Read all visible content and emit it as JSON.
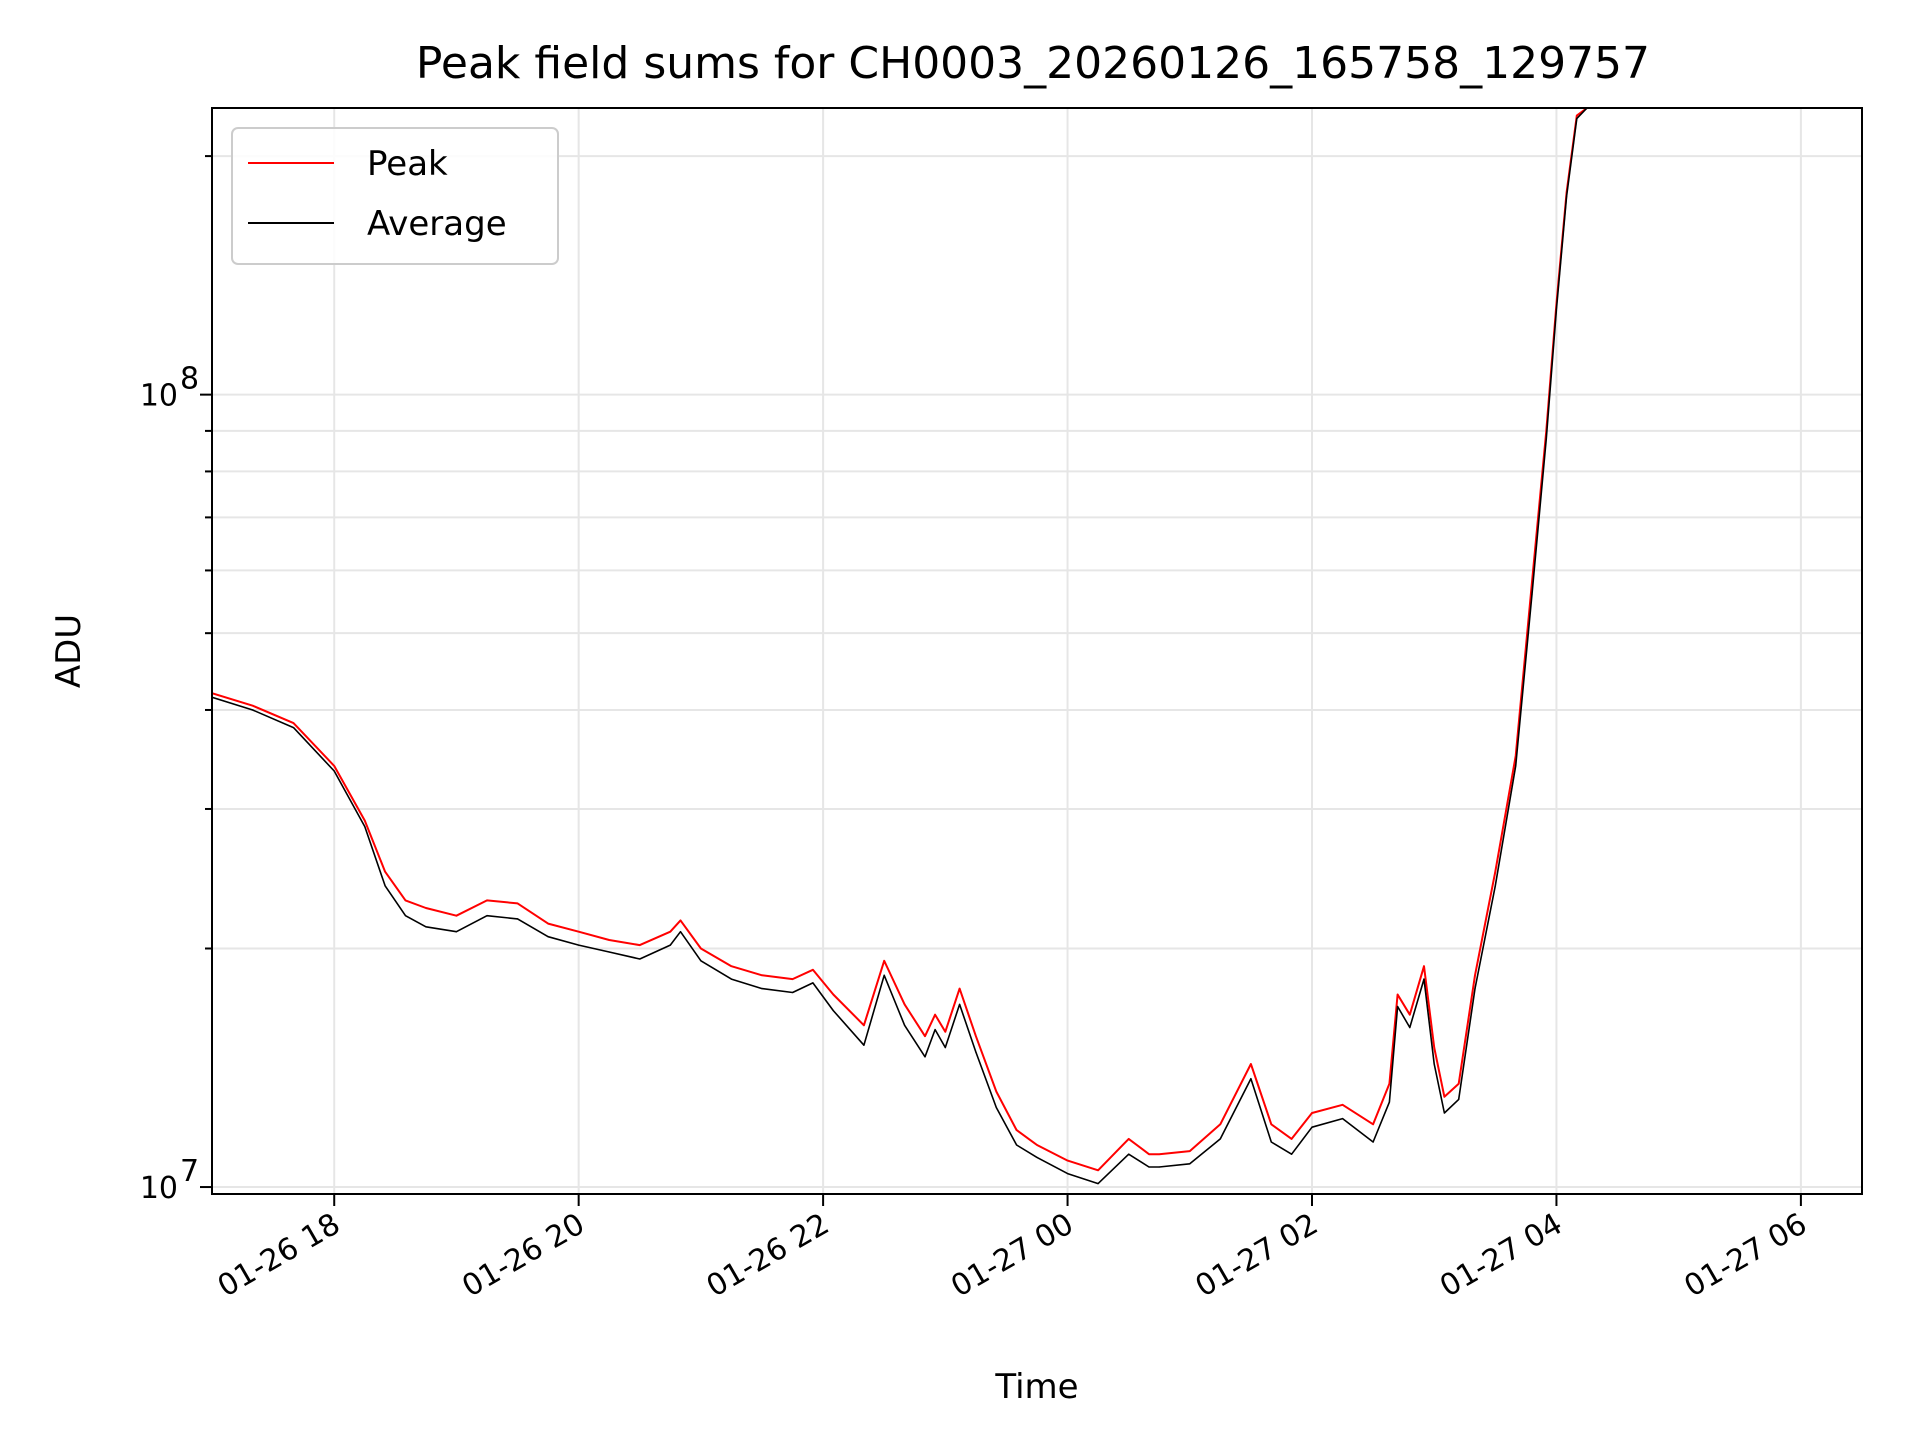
{
  "chart_data": {
    "type": "line",
    "title": "Peak field sums for CH0003_20260126_165758_129757",
    "xlabel": "Time",
    "ylabel": "ADU",
    "x_is_time": true,
    "xlim": [
      "2026-01-26 17:00",
      "2026-01-27 06:30"
    ],
    "ylim": [
      9800000,
      230000000
    ],
    "yscale": "log",
    "grid": true,
    "legend": "upper left",
    "x_ticks": [
      {
        "value": "2026-01-26 18:00",
        "label": "01-26 18"
      },
      {
        "value": "2026-01-26 20:00",
        "label": "01-26 20"
      },
      {
        "value": "2026-01-26 22:00",
        "label": "01-26 22"
      },
      {
        "value": "2026-01-27 00:00",
        "label": "01-27 00"
      },
      {
        "value": "2026-01-27 02:00",
        "label": "01-27 02"
      },
      {
        "value": "2026-01-27 04:00",
        "label": "01-27 04"
      },
      {
        "value": "2026-01-27 06:00",
        "label": "01-27 06"
      }
    ],
    "y_ticks": [
      {
        "value": 10000000,
        "base": "10",
        "exp": "7"
      },
      {
        "value": 100000000,
        "base": "10",
        "exp": "8"
      }
    ],
    "series": [
      {
        "name": "Peak",
        "color": "#ff0000",
        "x": [
          "2026-01-26 17:00",
          "2026-01-26 17:20",
          "2026-01-26 17:40",
          "2026-01-26 18:00",
          "2026-01-26 18:15",
          "2026-01-26 18:25",
          "2026-01-26 18:35",
          "2026-01-26 18:45",
          "2026-01-26 19:00",
          "2026-01-26 19:15",
          "2026-01-26 19:30",
          "2026-01-26 19:45",
          "2026-01-26 20:00",
          "2026-01-26 20:15",
          "2026-01-26 20:30",
          "2026-01-26 20:45",
          "2026-01-26 20:50",
          "2026-01-26 21:00",
          "2026-01-26 21:15",
          "2026-01-26 21:30",
          "2026-01-26 21:45",
          "2026-01-26 21:55",
          "2026-01-26 22:05",
          "2026-01-26 22:20",
          "2026-01-26 22:30",
          "2026-01-26 22:40",
          "2026-01-26 22:50",
          "2026-01-26 22:55",
          "2026-01-26 23:00",
          "2026-01-26 23:07",
          "2026-01-26 23:15",
          "2026-01-26 23:25",
          "2026-01-26 23:35",
          "2026-01-26 23:45",
          "2026-01-27 00:00",
          "2026-01-27 00:15",
          "2026-01-27 00:30",
          "2026-01-27 00:40",
          "2026-01-27 00:45",
          "2026-01-27 01:00",
          "2026-01-27 01:15",
          "2026-01-27 01:30",
          "2026-01-27 01:40",
          "2026-01-27 01:50",
          "2026-01-27 02:00",
          "2026-01-27 02:15",
          "2026-01-27 02:30",
          "2026-01-27 02:38",
          "2026-01-27 02:42",
          "2026-01-27 02:48",
          "2026-01-27 02:55",
          "2026-01-27 03:00",
          "2026-01-27 03:05",
          "2026-01-27 03:12",
          "2026-01-27 03:20",
          "2026-01-27 03:30",
          "2026-01-27 03:40",
          "2026-01-27 03:48",
          "2026-01-27 03:55",
          "2026-01-27 04:00",
          "2026-01-27 04:05",
          "2026-01-27 04:10",
          "2026-01-27 04:15"
        ],
        "values": [
          42000000,
          40500000,
          38500000,
          34000000,
          29000000,
          25000000,
          23000000,
          22500000,
          22000000,
          23000000,
          22800000,
          21500000,
          21000000,
          20500000,
          20200000,
          21000000,
          21700000,
          20000000,
          19000000,
          18500000,
          18300000,
          18800000,
          17500000,
          16000000,
          19300000,
          17000000,
          15500000,
          16500000,
          15700000,
          17800000,
          15500000,
          13200000,
          11800000,
          11300000,
          10800000,
          10500000,
          11500000,
          11000000,
          11000000,
          11100000,
          12000000,
          14300000,
          12000000,
          11500000,
          12400000,
          12700000,
          12000000,
          13500000,
          17500000,
          16500000,
          19000000,
          15000000,
          13000000,
          13500000,
          18500000,
          25000000,
          35000000,
          58000000,
          90000000,
          130000000,
          180000000,
          225000000,
          230000000
        ]
      },
      {
        "name": "Average",
        "color": "#000000",
        "x": [
          "2026-01-26 17:00",
          "2026-01-26 17:20",
          "2026-01-26 17:40",
          "2026-01-26 18:00",
          "2026-01-26 18:15",
          "2026-01-26 18:25",
          "2026-01-26 18:35",
          "2026-01-26 18:45",
          "2026-01-26 19:00",
          "2026-01-26 19:15",
          "2026-01-26 19:30",
          "2026-01-26 19:45",
          "2026-01-26 20:00",
          "2026-01-26 20:15",
          "2026-01-26 20:30",
          "2026-01-26 20:45",
          "2026-01-26 20:50",
          "2026-01-26 21:00",
          "2026-01-26 21:15",
          "2026-01-26 21:30",
          "2026-01-26 21:45",
          "2026-01-26 21:55",
          "2026-01-26 22:05",
          "2026-01-26 22:20",
          "2026-01-26 22:30",
          "2026-01-26 22:40",
          "2026-01-26 22:50",
          "2026-01-26 22:55",
          "2026-01-26 23:00",
          "2026-01-26 23:07",
          "2026-01-26 23:15",
          "2026-01-26 23:25",
          "2026-01-26 23:35",
          "2026-01-26 23:45",
          "2026-01-27 00:00",
          "2026-01-27 00:15",
          "2026-01-27 00:30",
          "2026-01-27 00:40",
          "2026-01-27 00:45",
          "2026-01-27 01:00",
          "2026-01-27 01:15",
          "2026-01-27 01:30",
          "2026-01-27 01:40",
          "2026-01-27 01:50",
          "2026-01-27 02:00",
          "2026-01-27 02:15",
          "2026-01-27 02:30",
          "2026-01-27 02:38",
          "2026-01-27 02:42",
          "2026-01-27 02:48",
          "2026-01-27 02:55",
          "2026-01-27 03:00",
          "2026-01-27 03:05",
          "2026-01-27 03:12",
          "2026-01-27 03:20",
          "2026-01-27 03:30",
          "2026-01-27 03:40",
          "2026-01-27 03:48",
          "2026-01-27 03:55",
          "2026-01-27 04:00",
          "2026-01-27 04:05",
          "2026-01-27 04:10",
          "2026-01-27 04:15"
        ],
        "values": [
          41500000,
          40000000,
          38000000,
          33500000,
          28500000,
          24000000,
          22000000,
          21300000,
          21000000,
          22000000,
          21800000,
          20700000,
          20200000,
          19800000,
          19400000,
          20200000,
          21000000,
          19300000,
          18300000,
          17800000,
          17600000,
          18100000,
          16700000,
          15100000,
          18500000,
          16000000,
          14600000,
          15800000,
          15000000,
          17000000,
          14800000,
          12600000,
          11300000,
          10900000,
          10400000,
          10100000,
          11000000,
          10600000,
          10600000,
          10700000,
          11500000,
          13700000,
          11400000,
          11000000,
          11900000,
          12200000,
          11400000,
          12800000,
          16900000,
          15900000,
          18300000,
          14300000,
          12400000,
          12900000,
          17800000,
          24000000,
          34000000,
          56000000,
          88000000,
          128000000,
          178000000,
          223000000,
          230000000
        ]
      }
    ]
  }
}
